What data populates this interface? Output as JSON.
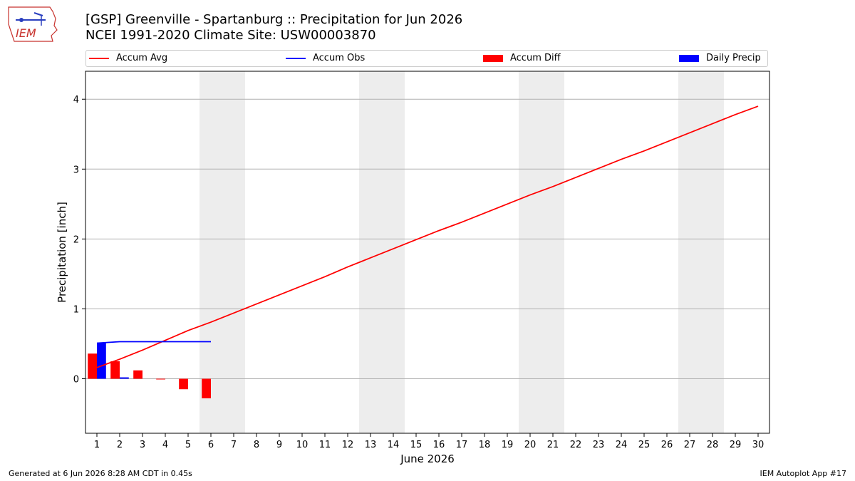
{
  "header": {
    "title_line1": "[GSP] Greenville - Spartanburg :: Precipitation for Jun 2026",
    "title_line2": "NCEI 1991-2020 Climate Site: USW00003870"
  },
  "logo": {
    "text": "IEM",
    "icon": "iem-iowa-logo"
  },
  "footer": {
    "left": "Generated at 6 Jun 2026 8:28 AM CDT in 0.45s",
    "right": "IEM Autoplot App #17"
  },
  "colors": {
    "accum_avg": "#ff0000",
    "accum_obs": "#0000ff",
    "accum_diff": "#ff0000",
    "daily_precip": "#0000ff",
    "weekend_band": "#ededed"
  },
  "chart_data": {
    "type": "line",
    "title": "[GSP] Greenville - Spartanburg :: Precipitation for Jun 2026",
    "subtitle": "NCEI 1991-2020 Climate Site: USW00003870",
    "xlabel": "June 2026",
    "ylabel": "Precipitation [inch]",
    "xlim": [
      0.5,
      30.5
    ],
    "ylim": [
      -0.78,
      4.4
    ],
    "yticks": [
      0,
      1,
      2,
      3,
      4
    ],
    "xticks": [
      1,
      2,
      3,
      4,
      5,
      6,
      7,
      8,
      9,
      10,
      11,
      12,
      13,
      14,
      15,
      16,
      17,
      18,
      19,
      20,
      21,
      22,
      23,
      24,
      25,
      26,
      27,
      28,
      29,
      30
    ],
    "grid": "horizontal",
    "legend_position": "top",
    "weekend_bands": [
      [
        6,
        7
      ],
      [
        13,
        14
      ],
      [
        20,
        21
      ],
      [
        27,
        28
      ]
    ],
    "legend": [
      "Accum Avg",
      "Accum Obs",
      "Accum Diff",
      "Daily Precip"
    ],
    "series": [
      {
        "name": "Accum Avg",
        "type": "line",
        "x": [
          1,
          2,
          3,
          4,
          5,
          6,
          7,
          8,
          9,
          10,
          11,
          12,
          13,
          14,
          15,
          16,
          17,
          18,
          19,
          20,
          21,
          22,
          23,
          24,
          25,
          26,
          27,
          28,
          29,
          30
        ],
        "values": [
          0.16,
          0.28,
          0.41,
          0.55,
          0.69,
          0.81,
          0.94,
          1.07,
          1.2,
          1.33,
          1.46,
          1.6,
          1.73,
          1.86,
          1.99,
          2.12,
          2.24,
          2.37,
          2.5,
          2.63,
          2.75,
          2.88,
          3.01,
          3.14,
          3.26,
          3.39,
          3.52,
          3.65,
          3.78,
          3.9
        ]
      },
      {
        "name": "Accum Obs",
        "type": "line",
        "x": [
          1,
          2,
          3,
          4,
          5,
          6
        ],
        "values": [
          0.51,
          0.53,
          0.53,
          0.53,
          0.53,
          0.53
        ]
      },
      {
        "name": "Accum Diff",
        "type": "bar",
        "x": [
          1,
          2,
          3,
          4,
          5,
          6
        ],
        "values": [
          0.36,
          0.25,
          0.12,
          -0.01,
          -0.15,
          -0.28
        ]
      },
      {
        "name": "Daily Precip",
        "type": "bar",
        "x": [
          1,
          2,
          3,
          4,
          5,
          6
        ],
        "values": [
          0.51,
          0.02,
          0.0,
          0.0,
          0.0,
          0.0
        ]
      }
    ]
  }
}
